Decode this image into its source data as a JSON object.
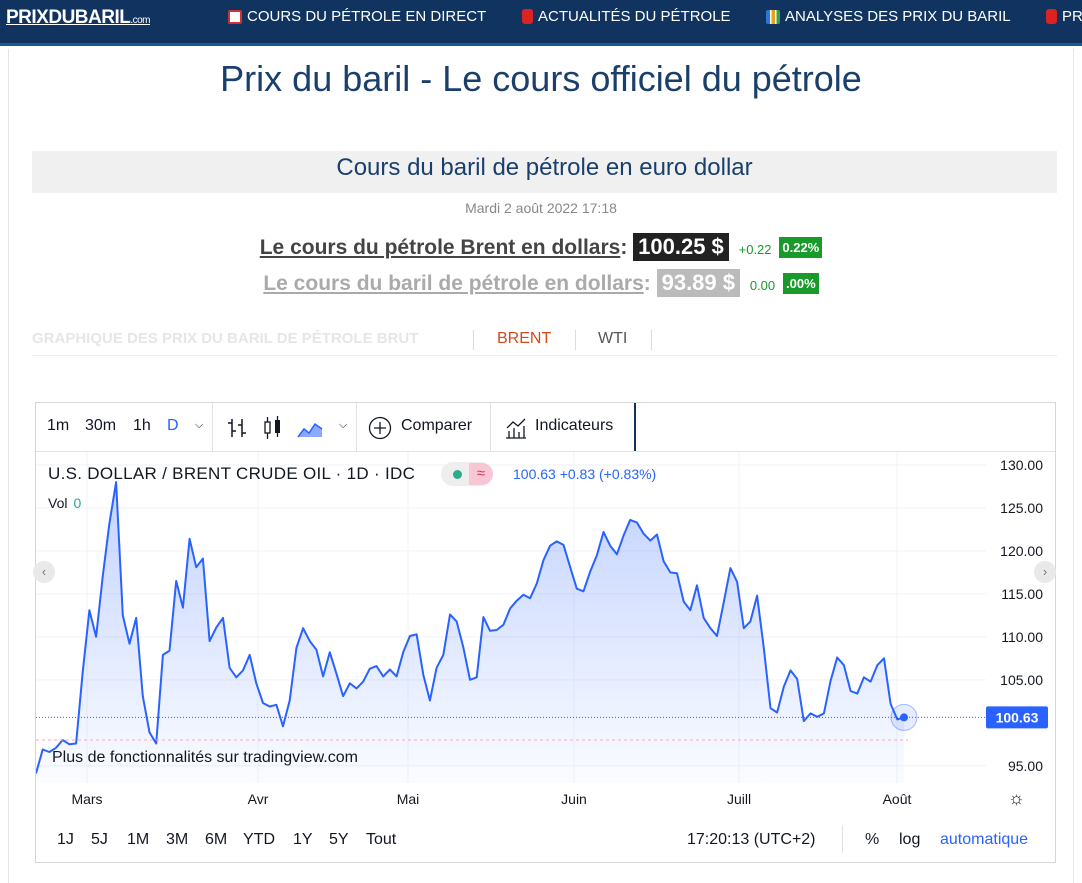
{
  "nav": {
    "logo": "PRIXDUBARIL",
    "logo_tld": ".com",
    "items": [
      {
        "label": "COURS DU PÉTROLE EN DIRECT",
        "icon": "chart-icon"
      },
      {
        "label": "ACTUALITÉS DU PÉTROLE",
        "icon": "barrel-icon"
      },
      {
        "label": "ANALYSES DES PRIX DU BARIL",
        "icon": "bar-chart-icon"
      },
      {
        "label": "PR",
        "icon": "barrel-icon"
      }
    ]
  },
  "page": {
    "title": "Prix du baril - Le cours officiel du pétrole",
    "subtitle": "Cours du baril de pétrole en euro dollar",
    "date": "Mardi 2 août 2022 17:18"
  },
  "prices": {
    "brent": {
      "label": "Le cours du pétrole Brent en dollars",
      "price": "100.25 $",
      "change": "+0.22",
      "pct": "0.22%"
    },
    "wti": {
      "label": "Le cours du baril de pétrole en dollars",
      "price": "93.89 $",
      "change": "0.00",
      "pct": ".00%"
    }
  },
  "tabs": {
    "heading": "GRAPHIQUE DES PRIX DU BARIL DE PÉTROLE BRUT",
    "brent": "BRENT",
    "wti": "WTI"
  },
  "widget": {
    "toolbar": {
      "intervals": [
        "1m",
        "30m",
        "1h",
        "D"
      ],
      "active_interval": "D",
      "compare": "Comparer",
      "indicators": "Indicateurs"
    },
    "legend": {
      "title": "U.S. DOLLAR / BRENT CRUDE OIL · 1D · IDC",
      "values": "100.63  +0.83 (+0.83%)",
      "vol_label": "Vol",
      "vol_value": "0"
    },
    "note": "Plus de fonctionnalités sur tradingview.com",
    "ranges": [
      "1J",
      "5J",
      "1M",
      "3M",
      "6M",
      "YTD",
      "1Y",
      "5Y",
      "Tout"
    ],
    "clock": "17:20:13 (UTC+2)",
    "percent": "%",
    "log": "log",
    "auto": "automatique"
  },
  "colors": {
    "nav_bg": "#10345f",
    "line": "#2962ff",
    "price_label": "#2962ff",
    "green": "#1a9a2a"
  },
  "chart_data": {
    "type": "area",
    "title": "U.S. DOLLAR / BRENT CRUDE OIL · 1D · IDC",
    "x_tick_labels": [
      "Mars",
      "Avr",
      "Mai",
      "Juin",
      "Juill",
      "Août"
    ],
    "y_tick_labels": [
      "130.00",
      "125.00",
      "120.00",
      "115.00",
      "110.00",
      "105.00",
      "95.00"
    ],
    "ylim": [
      93,
      131.5
    ],
    "last_price": 100.63,
    "last_price_label": "100.63",
    "series": [
      {
        "values": [
          94.1,
          96.9,
          96.6,
          97.1,
          98.0,
          97.5,
          97.6,
          105.9,
          113.1,
          110.0,
          117.1,
          123.2,
          128.0,
          112.5,
          109.2,
          112.2,
          103.1,
          98.9,
          97.6,
          107.9,
          108.4,
          116.5,
          113.4,
          121.4,
          118.1,
          119.1,
          109.5,
          111.1,
          112.2,
          106.4,
          105.3,
          106.1,
          107.9,
          104.6,
          102.3,
          101.9,
          102.1,
          99.6,
          102.6,
          108.7,
          111.0,
          109.5,
          108.5,
          105.4,
          108.2,
          105.7,
          103.1,
          104.6,
          104.0,
          104.8,
          106.3,
          106.6,
          105.4,
          106.2,
          105.4,
          108.2,
          110.1,
          110.3,
          105.6,
          102.6,
          106.4,
          107.9,
          112.6,
          111.8,
          108.8,
          105.0,
          105.3,
          112.3,
          110.7,
          110.8,
          111.4,
          113.3,
          114.2,
          114.9,
          114.5,
          116.2,
          118.9,
          120.6,
          121.1,
          120.7,
          118.1,
          115.6,
          115.3,
          117.6,
          119.5,
          122.2,
          120.6,
          119.6,
          121.8,
          123.6,
          123.3,
          122.0,
          121.2,
          121.9,
          118.8,
          117.5,
          117.4,
          114.1,
          113.1,
          116.0,
          112.2,
          111.0,
          110.1,
          114.0,
          118.0,
          116.4,
          111.0,
          111.8,
          114.8,
          108.7,
          101.7,
          101.2,
          104.2,
          106.1,
          105.1,
          100.2,
          101.1,
          100.7,
          101.1,
          104.9,
          107.6,
          106.7,
          103.7,
          103.4,
          105.3,
          104.8,
          106.7,
          107.5,
          102.2,
          100.4,
          100.63
        ]
      }
    ]
  }
}
